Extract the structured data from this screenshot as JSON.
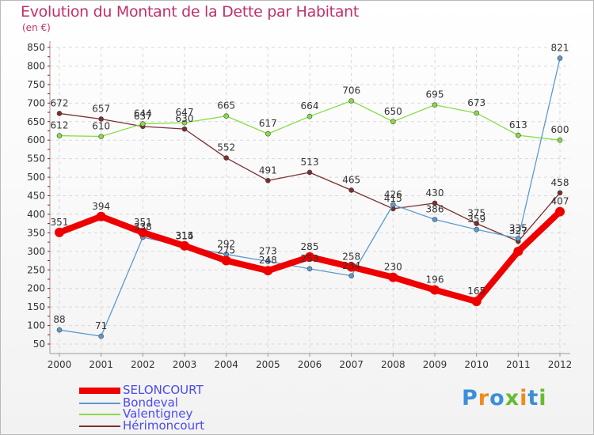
{
  "chart_data": {
    "type": "line",
    "title": "Evolution du Montant de la Dette par Habitant",
    "unit_label": "(en €)",
    "x": [
      "2000",
      "2001",
      "2002",
      "2003",
      "2004",
      "2005",
      "2006",
      "2007",
      "2008",
      "2009",
      "2010",
      "2011",
      "2012"
    ],
    "ylim": [
      50,
      850
    ],
    "yticks": [
      50,
      100,
      150,
      200,
      250,
      300,
      350,
      400,
      450,
      500,
      550,
      600,
      650,
      700,
      750,
      800,
      850
    ],
    "series": [
      {
        "name": "SELONCOURT",
        "color": "#ee0000",
        "values": [
          351,
          394,
          351,
          315,
          275,
          248,
          285,
          258,
          230,
          196,
          165,
          300,
          407
        ],
        "labels": [
          "351",
          "394",
          "351",
          "315",
          "275",
          "248",
          "285",
          "258",
          "230",
          "196",
          "165",
          "",
          "407"
        ]
      },
      {
        "name": "Bondeval",
        "color": "#5b9bd0",
        "values": [
          88,
          71,
          338,
          314,
          292,
          273,
          253,
          234,
          426,
          386,
          359,
          335,
          821
        ],
        "labels": [
          "88",
          "71",
          "338",
          "314",
          "292",
          "273",
          "253",
          "234",
          "426",
          "386",
          "359",
          "335",
          "821"
        ]
      },
      {
        "name": "Valentigney",
        "color": "#88dd44",
        "values": [
          612,
          610,
          644,
          647,
          665,
          617,
          664,
          706,
          650,
          695,
          673,
          613,
          600
        ],
        "labels": [
          "612",
          "610",
          "644",
          "647",
          "665",
          "617",
          "664",
          "706",
          "650",
          "695",
          "673",
          "613",
          "600"
        ]
      },
      {
        "name": "Hérimoncourt",
        "color": "#7a2f2f",
        "values": [
          672,
          657,
          637,
          630,
          552,
          491,
          513,
          465,
          415,
          430,
          375,
          327,
          458
        ],
        "labels": [
          "672",
          "657",
          "637",
          "630",
          "552",
          "491",
          "513",
          "465",
          "415",
          "430",
          "375",
          "327",
          "458"
        ]
      }
    ]
  },
  "brand": {
    "letters": [
      "P",
      "r",
      "o",
      "x",
      "i",
      "t",
      "i"
    ],
    "colors": [
      "#3b8fd9",
      "#f08a1c",
      "#3b8fd9",
      "#66bb33",
      "#f08a1c",
      "#3b8fd9",
      "#66bb33"
    ]
  }
}
